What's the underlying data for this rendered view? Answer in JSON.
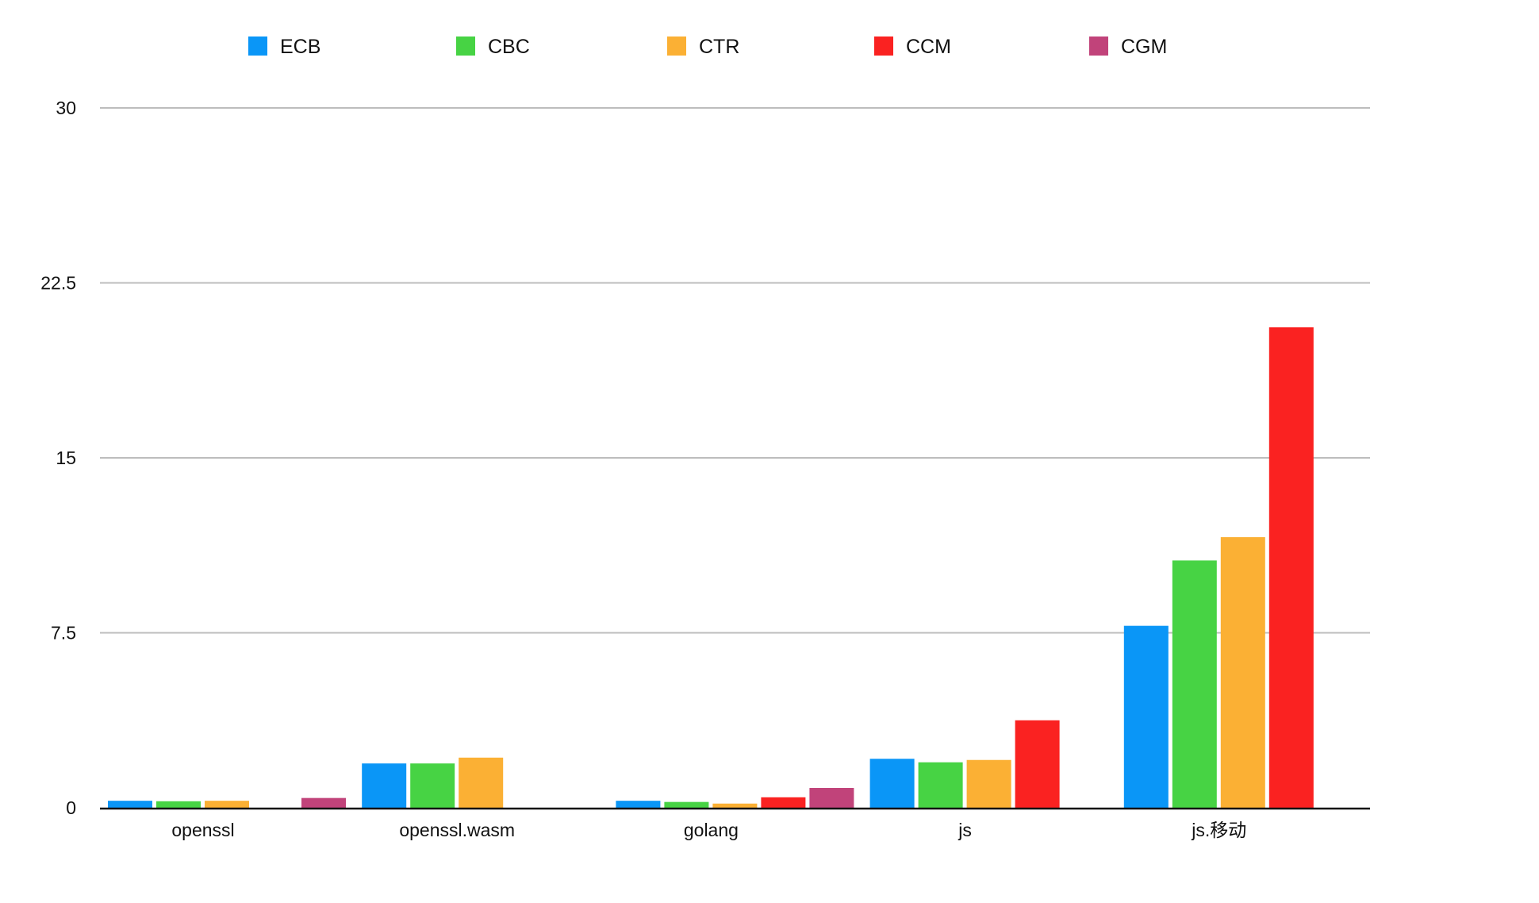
{
  "chart_data": {
    "type": "bar",
    "categories": [
      "openssl",
      "openssl.wasm",
      "golang",
      "js",
      "js.移动"
    ],
    "series": [
      {
        "name": "ECB",
        "color": "#0a96f7",
        "values": [
          0.3,
          1.9,
          0.3,
          2.1,
          7.8
        ]
      },
      {
        "name": "CBC",
        "color": "#47d344",
        "values": [
          0.28,
          1.9,
          0.25,
          1.95,
          10.6
        ]
      },
      {
        "name": "CTR",
        "color": "#fbb034",
        "values": [
          0.3,
          2.15,
          0.18,
          2.05,
          11.6
        ]
      },
      {
        "name": "CCM",
        "color": "#fa2221",
        "values": [
          null,
          null,
          0.45,
          3.75,
          20.6
        ]
      },
      {
        "name": "CGM",
        "color": "#c1437a",
        "values": [
          0.42,
          null,
          0.85,
          null,
          null
        ]
      }
    ],
    "yticks": [
      "0",
      "7.5",
      "15",
      "22.5",
      "30"
    ],
    "ylim": [
      0,
      30
    ],
    "grid": true,
    "legend_position": "top",
    "title": "",
    "xlabel": "",
    "ylabel": ""
  }
}
